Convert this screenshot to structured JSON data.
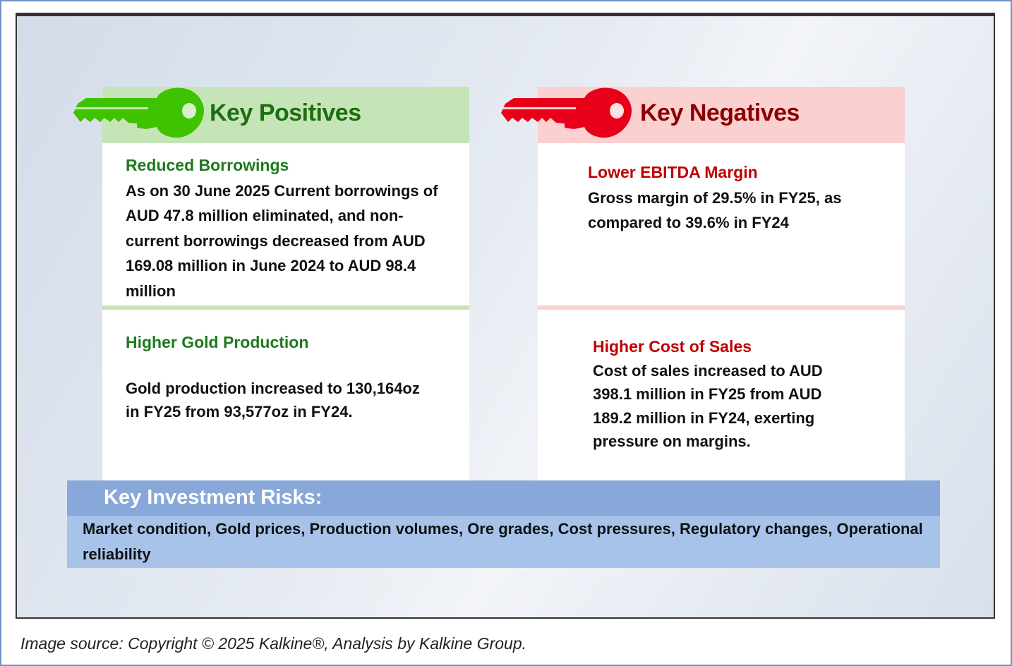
{
  "positives": {
    "title": "Key Positives",
    "items": [
      {
        "heading": "Reduced Borrowings",
        "text": "As on  30 June 2025 Current borrowings of AUD 47.8 million eliminated, and non-current borrowings decreased from AUD 169.08 million in June 2024 to AUD 98.4 million"
      },
      {
        "heading": "Higher Gold Production",
        "text": "Gold production increased to 130,164oz in FY25 from 93,577oz in FY24."
      }
    ]
  },
  "negatives": {
    "title": "Key Negatives",
    "items": [
      {
        "heading": "Lower EBITDA Margin",
        "text": "Gross margin of  29.5% in FY25, as compared to 39.6% in FY24"
      },
      {
        "heading": "Higher Cost of Sales",
        "text": "Cost of sales increased to AUD 398.1 million in FY25 from AUD 189.2 million in FY24, exerting pressure on margins."
      }
    ]
  },
  "risks": {
    "title": "Key Investment Risks:",
    "text": "Market condition, Gold prices, Production volumes, Ore grades, Cost pressures, Regulatory changes, Operational reliability"
  },
  "source": "Image source: Copyright © 2025 Kalkine®, Analysis by Kalkine Group.",
  "colors": {
    "positive": "#1e7a1e",
    "negative": "#c00000",
    "key_green": "#3fc300",
    "key_red": "#e8001a"
  }
}
